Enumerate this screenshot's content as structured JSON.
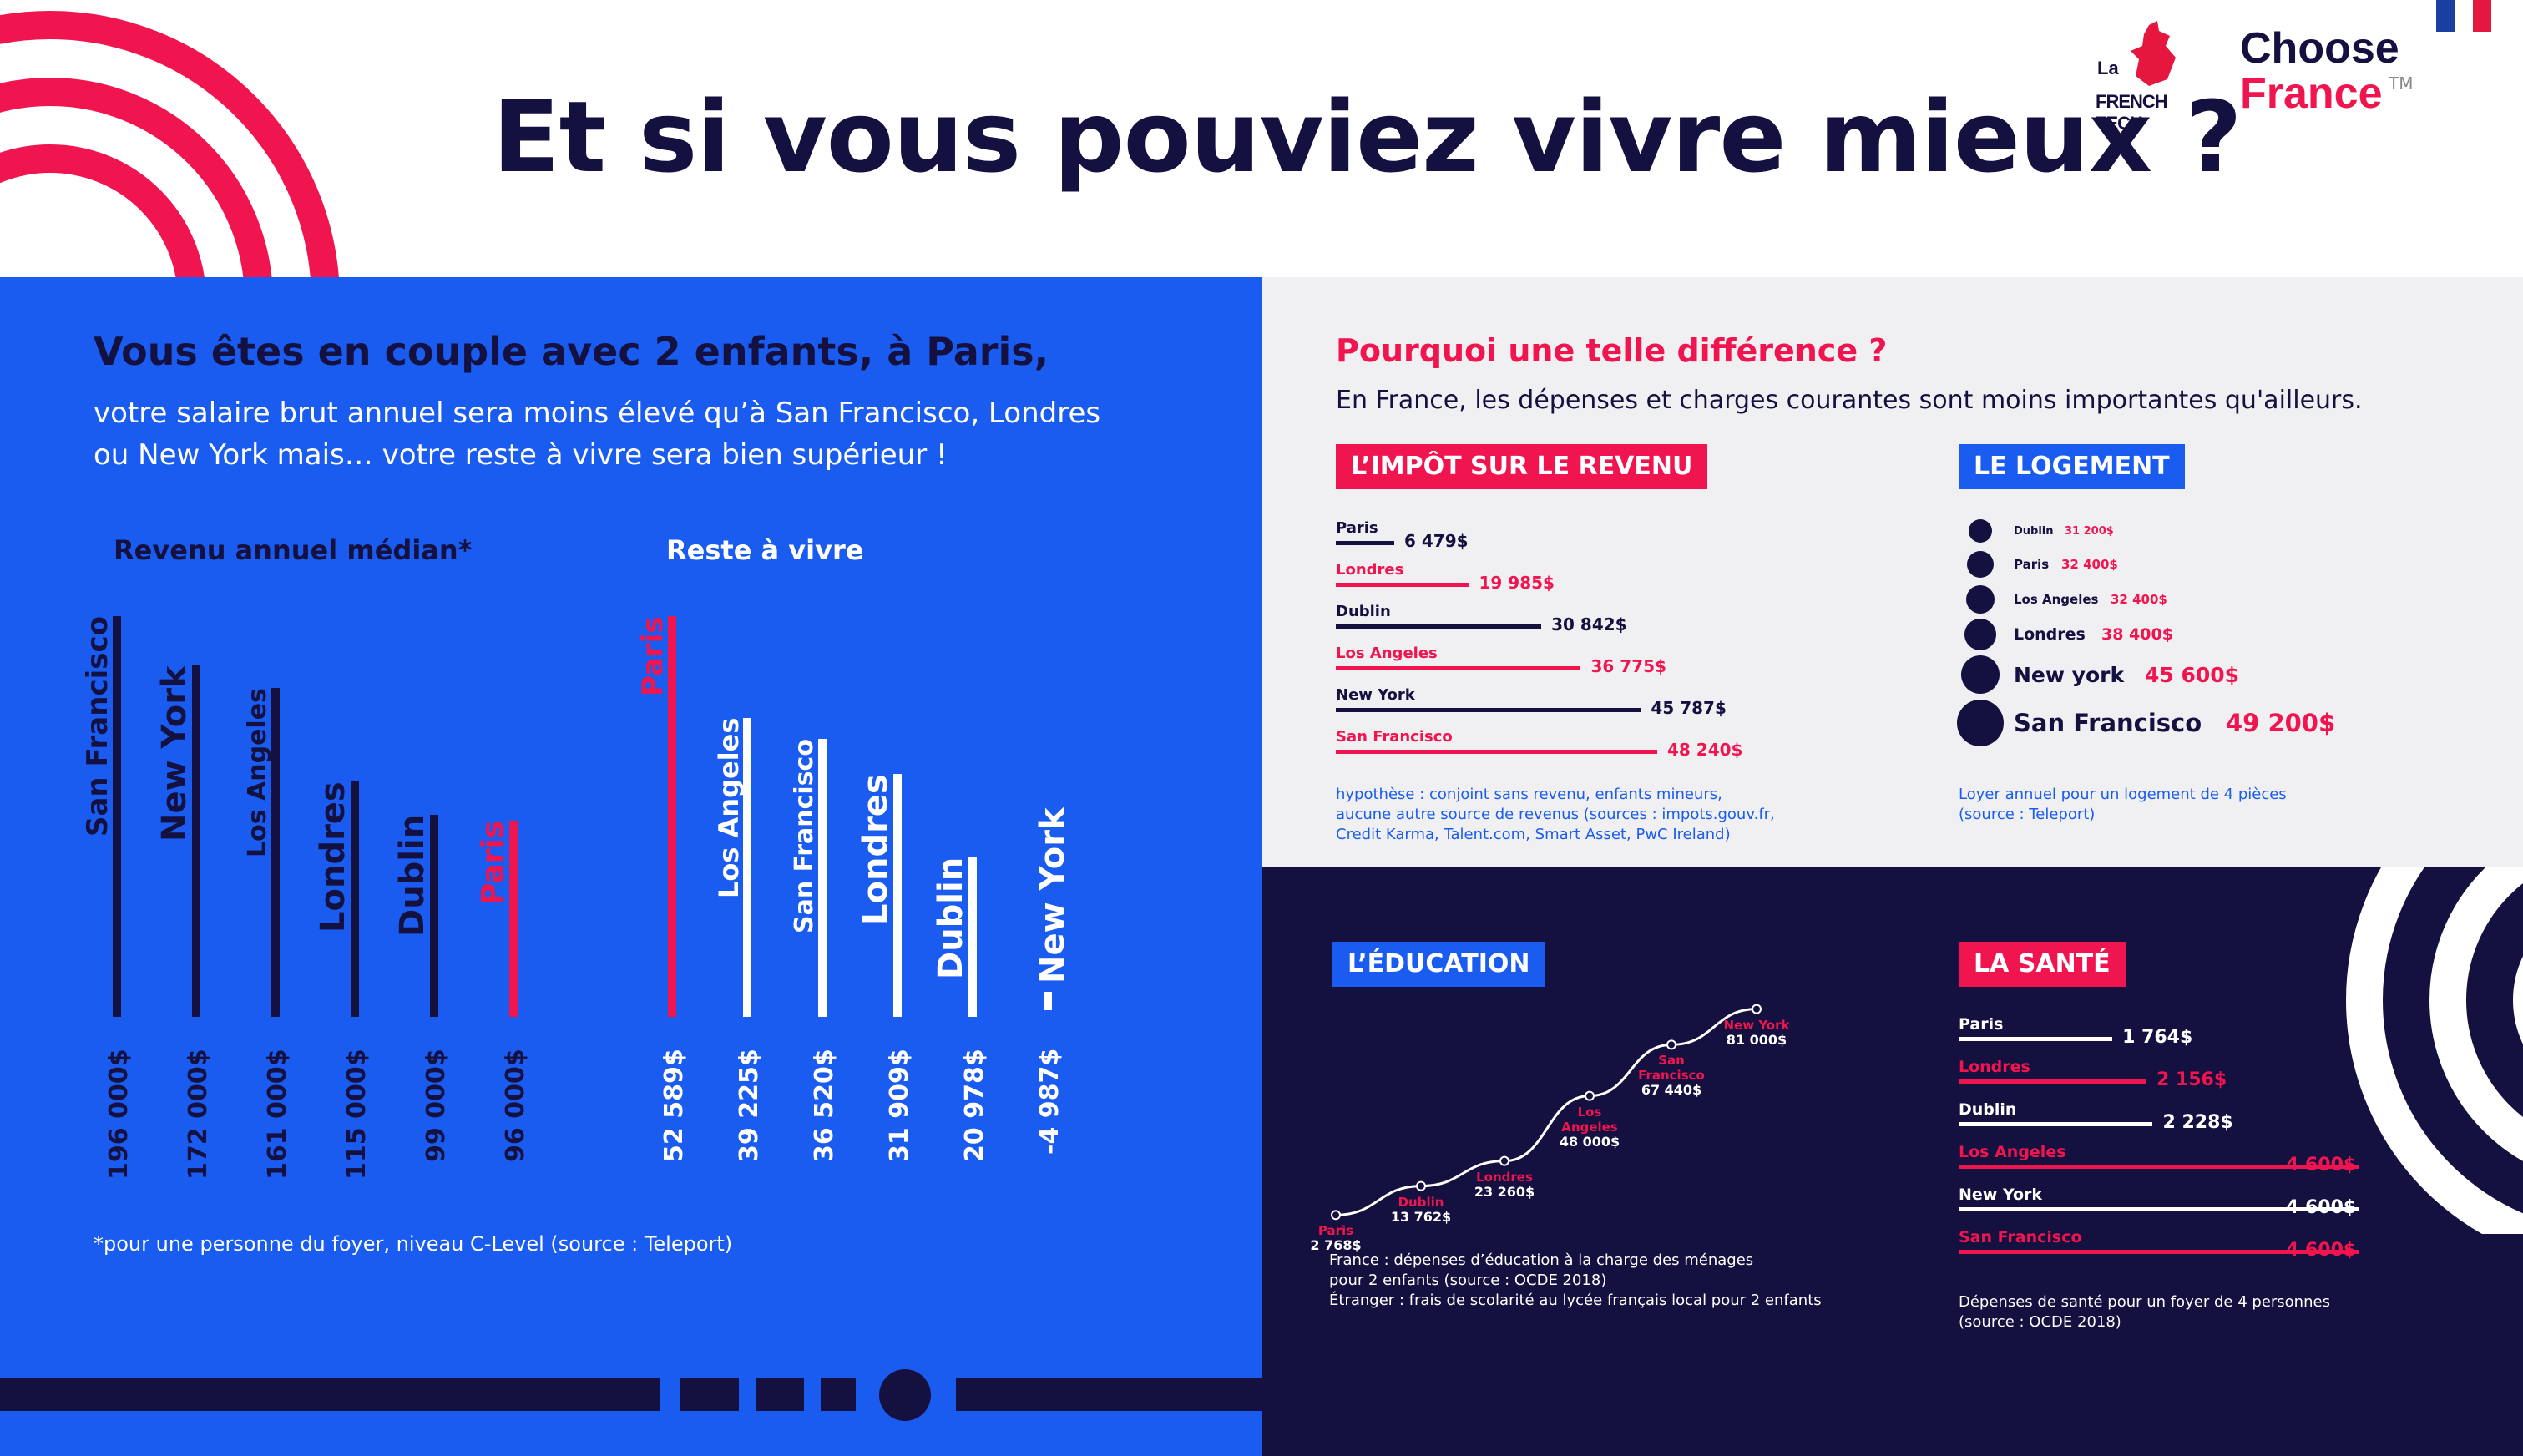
{
  "header": {
    "title": "Et si vous pouviez vivre mieux ?",
    "logo_frenchtech_line1": "La",
    "logo_frenchtech_line2": "FRENCH TECH",
    "logo_choose": "Choose",
    "logo_france": "France",
    "logo_tm": "TM"
  },
  "colors": {
    "blue": "#1a5cf0",
    "navy": "#14103f",
    "pink": "#f0144f",
    "grey": "#f0f0f2",
    "white": "#ffffff"
  },
  "left": {
    "heading": "Vous êtes en couple avec 2 enfants, à Paris,",
    "intro_line1": "votre salaire brut annuel sera moins élevé qu’à San Francisco, Londres",
    "intro_line2": "ou New York mais… votre reste à vivre sera bien supérieur !",
    "footnote": "*pour une personne du foyer, niveau C-Level (source : Teleport)"
  },
  "right_top": {
    "heading": "Pourquoi une telle différence ?",
    "intro": "En France, les dépenses et charges courantes sont moins importantes qu'ailleurs."
  },
  "chart_data": [
    {
      "type": "bar",
      "title": "Revenu annuel médian*",
      "categories": [
        "San Francisco",
        "New York",
        "Los Angeles",
        "Londres",
        "Dublin",
        "Paris"
      ],
      "values": [
        196000,
        172000,
        161000,
        115000,
        99000,
        96000
      ],
      "value_labels": [
        "196 000$",
        "172 000$",
        "161 000$",
        "115 000$",
        "99 000$",
        "96 000$"
      ],
      "highlight": "Paris"
    },
    {
      "type": "bar",
      "title": "Reste à vivre",
      "categories": [
        "Paris",
        "Los Angeles",
        "San Francisco",
        "Londres",
        "Dublin",
        "New York"
      ],
      "values": [
        52589,
        39225,
        36520,
        31909,
        20978,
        -4987
      ],
      "value_labels": [
        "52 589$",
        "39 225$",
        "36 520$",
        "31 909$",
        "20 978$",
        "-4 987$"
      ],
      "highlight": "Paris"
    },
    {
      "type": "bar",
      "title": "L’IMPÔT SUR LE REVENU",
      "categories": [
        "Paris",
        "Londres",
        "Dublin",
        "Los Angeles",
        "New York",
        "San Francisco"
      ],
      "values": [
        6479,
        19985,
        30842,
        36775,
        45787,
        48240
      ],
      "value_labels": [
        "6 479$",
        "19 985$",
        "30 842$",
        "36 775$",
        "45 787$",
        "48 240$"
      ],
      "highlight": [
        "Londres",
        "Los Angeles",
        "San Francisco"
      ],
      "note_line1": "hypothèse : conjoint sans revenu, enfants mineurs,",
      "note_line2": "aucune autre source de revenus (sources : impots.gouv.fr,",
      "note_line3": "Credit Karma, Talent.com, Smart Asset, PwC Ireland)"
    },
    {
      "type": "scatter",
      "title": "LE LOGEMENT",
      "categories": [
        "Dublin",
        "Paris",
        "Los Angeles",
        "Londres",
        "New york",
        "San Francisco"
      ],
      "values": [
        31200,
        32400,
        32400,
        38400,
        45600,
        49200
      ],
      "value_labels": [
        "31 200$",
        "32 400$",
        "32 400$",
        "38 400$",
        "45 600$",
        "49 200$"
      ],
      "note_line1": "Loyer annuel pour un logement de 4 pièces",
      "note_line2": "(source : Teleport)"
    },
    {
      "type": "line",
      "title": "L’ÉDUCATION",
      "categories": [
        "Paris",
        "Dublin",
        "Londres",
        "Los Angeles",
        "San Francisco",
        "New York"
      ],
      "label_lines": [
        [
          "Paris"
        ],
        [
          "Dublin"
        ],
        [
          "Londres"
        ],
        [
          "Los",
          "Angeles"
        ],
        [
          "San",
          "Francisco"
        ],
        [
          "New York"
        ]
      ],
      "values": [
        2768,
        13762,
        23260,
        48000,
        67440,
        81000
      ],
      "value_labels": [
        "2 768$",
        "13 762$",
        "23 260$",
        "48 000$",
        "67 440$",
        "81 000$"
      ],
      "ylim": [
        0,
        85000
      ],
      "note_line1": "France : dépenses d’éducation à la charge des ménages",
      "note_line2": "pour 2 enfants (source : OCDE 2018)",
      "note_line3": "Étranger : frais de scolarité au lycée français local pour 2 enfants"
    },
    {
      "type": "bar",
      "title": "LA SANTÉ",
      "categories": [
        "Paris",
        "Londres",
        "Dublin",
        "Los Angeles",
        "New York",
        "San Francisco"
      ],
      "values": [
        1764,
        2156,
        2228,
        4600,
        4600,
        4600
      ],
      "value_labels": [
        "1 764$",
        "2 156$",
        "2 228$",
        "4 600$",
        "4 600$",
        "4 600$"
      ],
      "highlight": [
        "Londres",
        "Los Angeles",
        "San Francisco"
      ],
      "note_line1": "Dépenses de santé pour un foyer de 4 personnes",
      "note_line2": "(source : OCDE 2018)"
    }
  ]
}
